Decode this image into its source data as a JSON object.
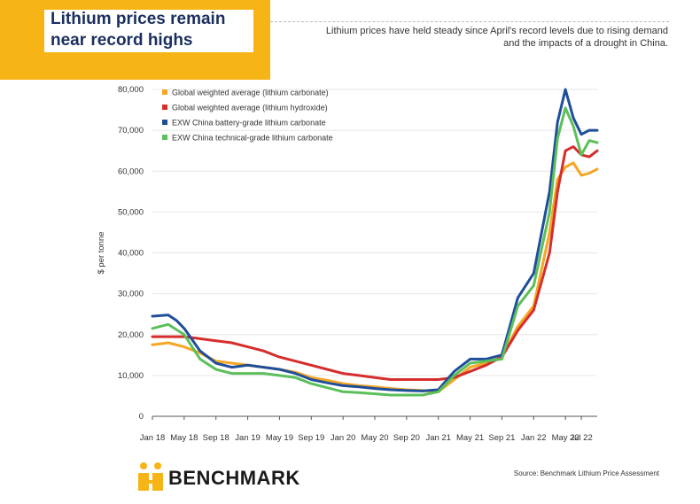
{
  "header": {
    "title_line1": "Lithium prices remain",
    "title_line2": "near record highs",
    "subtitle_line1": "Lithium prices have held steady since April's record levels due to rising demand",
    "subtitle_line2": "and the impacts of a drought in China."
  },
  "footer": {
    "brand": "BENCHMARK",
    "source": "Source: Benchmark Lithium Price Assessment"
  },
  "colors": {
    "accent": "#f7b416",
    "title": "#1b2f5f",
    "orange": "#f5a623",
    "red": "#d62d2d",
    "blue": "#1f4e9a",
    "green": "#5bbf5a"
  },
  "chart_data": {
    "type": "line",
    "title": "Lithium prices remain near record highs",
    "xlabel": "",
    "ylabel": "$ per tonne",
    "ylim": [
      0,
      80000
    ],
    "yticks": [
      0,
      10000,
      20000,
      30000,
      40000,
      50000,
      60000,
      70000,
      80000
    ],
    "ytick_labels": [
      "0",
      "10,000",
      "20,000",
      "30,000",
      "40,000",
      "50,000",
      "60,000",
      "70,000",
      "80,000"
    ],
    "x_tick_labels": [
      "Jan 18",
      "May 18",
      "Sep 18",
      "Jan 19",
      "May 19",
      "Sep 19",
      "Jan 20",
      "May 20",
      "Sep 20",
      "Jan 21",
      "May 21",
      "Sep 21",
      "Jan 22",
      "May 22",
      "Jul 22"
    ],
    "x_tick_months": [
      0,
      4,
      8,
      12,
      16,
      20,
      24,
      28,
      32,
      36,
      40,
      44,
      48,
      52,
      54
    ],
    "legend_position": "top-left",
    "series": [
      {
        "name": "Global weighted average (lithium carbonate)",
        "color": "#f5a623",
        "points": [
          [
            0,
            17500
          ],
          [
            2,
            18000
          ],
          [
            4,
            17000
          ],
          [
            6,
            15500
          ],
          [
            8,
            13500
          ],
          [
            10,
            13000
          ],
          [
            12,
            12500
          ],
          [
            14,
            12000
          ],
          [
            16,
            11500
          ],
          [
            18,
            10800
          ],
          [
            20,
            9500
          ],
          [
            22,
            8800
          ],
          [
            24,
            8000
          ],
          [
            26,
            7500
          ],
          [
            28,
            7200
          ],
          [
            30,
            6800
          ],
          [
            32,
            6500
          ],
          [
            34,
            6300
          ],
          [
            36,
            6000
          ],
          [
            38,
            9000
          ],
          [
            40,
            12000
          ],
          [
            42,
            13000
          ],
          [
            44,
            14500
          ],
          [
            46,
            22000
          ],
          [
            48,
            27000
          ],
          [
            50,
            45000
          ],
          [
            51,
            58000
          ],
          [
            52,
            61000
          ],
          [
            53,
            62000
          ],
          [
            54,
            59000
          ],
          [
            55,
            59500
          ],
          [
            56,
            60500
          ]
        ]
      },
      {
        "name": "Global weighted average (lithium hydroxide)",
        "color": "#d62d2d",
        "points": [
          [
            0,
            19500
          ],
          [
            2,
            19500
          ],
          [
            4,
            19500
          ],
          [
            6,
            19000
          ],
          [
            8,
            18500
          ],
          [
            10,
            18000
          ],
          [
            12,
            17000
          ],
          [
            14,
            16000
          ],
          [
            16,
            14500
          ],
          [
            18,
            13500
          ],
          [
            20,
            12500
          ],
          [
            22,
            11500
          ],
          [
            24,
            10500
          ],
          [
            26,
            10000
          ],
          [
            28,
            9500
          ],
          [
            30,
            9000
          ],
          [
            32,
            9000
          ],
          [
            34,
            9000
          ],
          [
            36,
            9000
          ],
          [
            38,
            9500
          ],
          [
            40,
            11000
          ],
          [
            42,
            12500
          ],
          [
            44,
            14500
          ],
          [
            46,
            21000
          ],
          [
            48,
            26000
          ],
          [
            50,
            40000
          ],
          [
            51,
            55000
          ],
          [
            52,
            65000
          ],
          [
            53,
            66000
          ],
          [
            54,
            64000
          ],
          [
            55,
            63500
          ],
          [
            56,
            65000
          ]
        ]
      },
      {
        "name": "EXW China battery-grade lithium carbonate",
        "color": "#1f4e9a",
        "points": [
          [
            0,
            24500
          ],
          [
            2,
            24800
          ],
          [
            3,
            23500
          ],
          [
            4,
            21500
          ],
          [
            6,
            16000
          ],
          [
            8,
            13000
          ],
          [
            10,
            12000
          ],
          [
            12,
            12500
          ],
          [
            14,
            12000
          ],
          [
            16,
            11500
          ],
          [
            18,
            10500
          ],
          [
            20,
            9000
          ],
          [
            22,
            8200
          ],
          [
            24,
            7500
          ],
          [
            26,
            7200
          ],
          [
            28,
            6800
          ],
          [
            30,
            6500
          ],
          [
            32,
            6300
          ],
          [
            34,
            6200
          ],
          [
            36,
            6500
          ],
          [
            38,
            11000
          ],
          [
            40,
            14000
          ],
          [
            42,
            14000
          ],
          [
            44,
            15000
          ],
          [
            46,
            29000
          ],
          [
            48,
            35000
          ],
          [
            50,
            55000
          ],
          [
            51,
            72000
          ],
          [
            52,
            80000
          ],
          [
            53,
            73000
          ],
          [
            54,
            69000
          ],
          [
            55,
            70000
          ],
          [
            56,
            70000
          ]
        ]
      },
      {
        "name": "EXW China technical-grade lithium carbonate",
        "color": "#5bbf5a",
        "points": [
          [
            0,
            21500
          ],
          [
            2,
            22500
          ],
          [
            4,
            20000
          ],
          [
            6,
            14000
          ],
          [
            8,
            11500
          ],
          [
            10,
            10500
          ],
          [
            12,
            10500
          ],
          [
            14,
            10500
          ],
          [
            16,
            10000
          ],
          [
            18,
            9500
          ],
          [
            20,
            8000
          ],
          [
            22,
            7000
          ],
          [
            24,
            6000
          ],
          [
            26,
            5800
          ],
          [
            28,
            5500
          ],
          [
            30,
            5200
          ],
          [
            32,
            5200
          ],
          [
            34,
            5200
          ],
          [
            36,
            6000
          ],
          [
            38,
            10000
          ],
          [
            40,
            13000
          ],
          [
            42,
            13500
          ],
          [
            44,
            14000
          ],
          [
            46,
            27000
          ],
          [
            48,
            32000
          ],
          [
            50,
            50000
          ],
          [
            51,
            68000
          ],
          [
            52,
            75500
          ],
          [
            53,
            71000
          ],
          [
            54,
            64000
          ],
          [
            55,
            67500
          ],
          [
            56,
            67000
          ]
        ]
      }
    ]
  }
}
